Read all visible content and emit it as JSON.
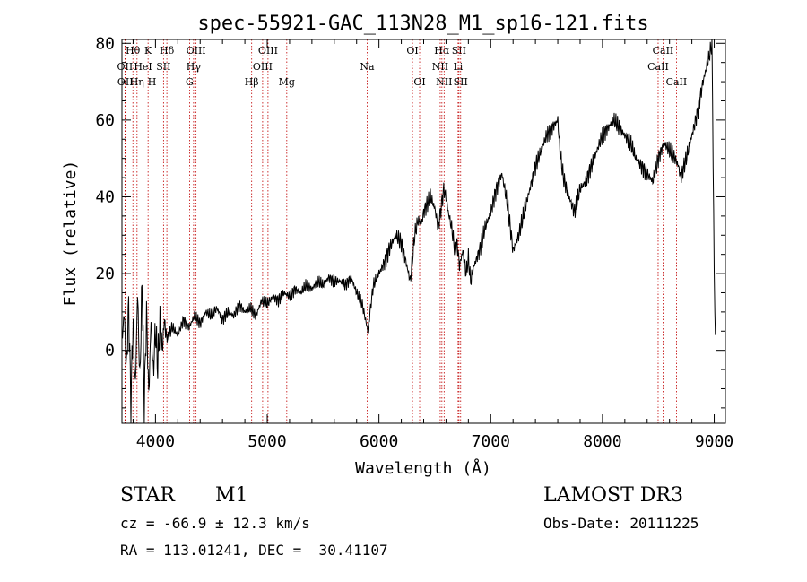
{
  "chart_data": {
    "type": "line",
    "title": "spec-55921-GAC_113N28_M1_sp16-121.fits",
    "xlabel": "Wavelength (Å)",
    "ylabel": "Flux (relative)",
    "xlim": [
      3700,
      9100
    ],
    "ylim": [
      -19,
      81
    ],
    "x_ticks": [
      4000,
      5000,
      6000,
      7000,
      8000,
      9000
    ],
    "y_ticks": [
      0,
      20,
      40,
      60,
      80
    ],
    "line_color": "#000000",
    "marker_color": "#c00000",
    "series": [
      {
        "name": "flux",
        "x": [
          3700,
          3720,
          3740,
          3760,
          3780,
          3800,
          3820,
          3840,
          3860,
          3880,
          3900,
          3920,
          3940,
          3960,
          3980,
          4000,
          4020,
          4040,
          4060,
          4080,
          4100,
          4150,
          4200,
          4250,
          4300,
          4350,
          4400,
          4450,
          4500,
          4550,
          4600,
          4650,
          4700,
          4750,
          4800,
          4850,
          4900,
          4950,
          5000,
          5050,
          5100,
          5150,
          5200,
          5250,
          5300,
          5350,
          5400,
          5450,
          5500,
          5550,
          5600,
          5650,
          5700,
          5750,
          5800,
          5850,
          5880,
          5900,
          5920,
          5950,
          6000,
          6050,
          6100,
          6150,
          6200,
          6250,
          6280,
          6300,
          6320,
          6350,
          6380,
          6400,
          6430,
          6460,
          6500,
          6530,
          6560,
          6580,
          6600,
          6620,
          6650,
          6680,
          6700,
          6720,
          6750,
          6780,
          6800,
          6820,
          6850,
          6900,
          6950,
          7000,
          7050,
          7100,
          7150,
          7200,
          7250,
          7300,
          7350,
          7400,
          7450,
          7500,
          7550,
          7600,
          7620,
          7650,
          7700,
          7750,
          7800,
          7850,
          7900,
          7950,
          8000,
          8050,
          8100,
          8150,
          8200,
          8250,
          8300,
          8350,
          8400,
          8450,
          8500,
          8550,
          8600,
          8650,
          8680,
          8700,
          8750,
          8800,
          8850,
          8900,
          8950,
          8980,
          9000,
          9010
        ],
        "y": [
          2,
          10,
          -5,
          12,
          -14,
          8,
          -10,
          15,
          -8,
          18,
          -15,
          10,
          -12,
          8,
          -6,
          5,
          -4,
          7,
          0,
          8,
          3,
          6,
          4,
          8,
          6,
          9,
          7,
          10,
          9,
          11,
          8,
          10,
          9,
          12,
          10,
          11,
          9,
          13,
          12,
          14,
          13,
          15,
          14,
          16,
          15,
          17,
          16,
          18,
          17,
          19,
          18,
          18,
          17,
          19,
          15,
          12,
          8,
          5,
          10,
          17,
          20,
          23,
          27,
          30,
          28,
          22,
          18,
          24,
          30,
          34,
          33,
          36,
          38,
          40,
          37,
          32,
          38,
          42,
          40,
          36,
          32,
          26,
          28,
          22,
          26,
          20,
          24,
          18,
          22,
          26,
          32,
          36,
          42,
          46,
          38,
          26,
          30,
          36,
          42,
          48,
          52,
          56,
          58,
          60,
          52,
          45,
          40,
          36,
          42,
          44,
          48,
          52,
          56,
          58,
          60,
          58,
          56,
          54,
          50,
          48,
          46,
          44,
          50,
          54,
          52,
          50,
          48,
          45,
          50,
          56,
          62,
          70,
          76,
          80,
          20,
          4
        ]
      }
    ],
    "line_markers": [
      {
        "label": "Hθ",
        "x": 3798,
        "row": 0
      },
      {
        "label": "OII",
        "x": 3727,
        "row": 1
      },
      {
        "label": "OII",
        "x": 3730,
        "row": 2
      },
      {
        "label": "Hη",
        "x": 3835,
        "row": 2
      },
      {
        "label": "HeI",
        "x": 3889,
        "row": 1
      },
      {
        "label": "K",
        "x": 3934,
        "row": 0
      },
      {
        "label": "H",
        "x": 3969,
        "row": 2
      },
      {
        "label": "SII",
        "x": 4072,
        "row": 1
      },
      {
        "label": "Hδ",
        "x": 4102,
        "row": 0
      },
      {
        "label": "OIII",
        "x": 4363,
        "row": 0
      },
      {
        "label": "Hγ",
        "x": 4341,
        "row": 1
      },
      {
        "label": "G",
        "x": 4305,
        "row": 2
      },
      {
        "label": "Hβ",
        "x": 4861,
        "row": 2
      },
      {
        "label": "OIII",
        "x": 5007,
        "row": 0
      },
      {
        "label": "OIII",
        "x": 4959,
        "row": 1
      },
      {
        "label": "Mg",
        "x": 5175,
        "row": 2
      },
      {
        "label": "Na",
        "x": 5894,
        "row": 1
      },
      {
        "label": "OI",
        "x": 6300,
        "row": 0
      },
      {
        "label": "OI",
        "x": 6364,
        "row": 2
      },
      {
        "label": "NII",
        "x": 6548,
        "row": 1
      },
      {
        "label": "Hα",
        "x": 6563,
        "row": 0
      },
      {
        "label": "NII",
        "x": 6583,
        "row": 2
      },
      {
        "label": "SII",
        "x": 6716,
        "row": 0
      },
      {
        "label": "Li",
        "x": 6708,
        "row": 1
      },
      {
        "label": "SII",
        "x": 6731,
        "row": 2
      },
      {
        "label": "CaII",
        "x": 8542,
        "row": 0
      },
      {
        "label": "CaII",
        "x": 8498,
        "row": 1
      },
      {
        "label": "CaII",
        "x": 8662,
        "row": 2
      }
    ]
  },
  "info": {
    "class_label": "STAR",
    "subclass": "M1",
    "survey": "LAMOST DR3",
    "cz_line": "cz = -66.9 ± 12.3 km/s",
    "obs_date": "Obs-Date: 20111225",
    "coords": "RA = 113.01241, DEC =  30.41107"
  }
}
